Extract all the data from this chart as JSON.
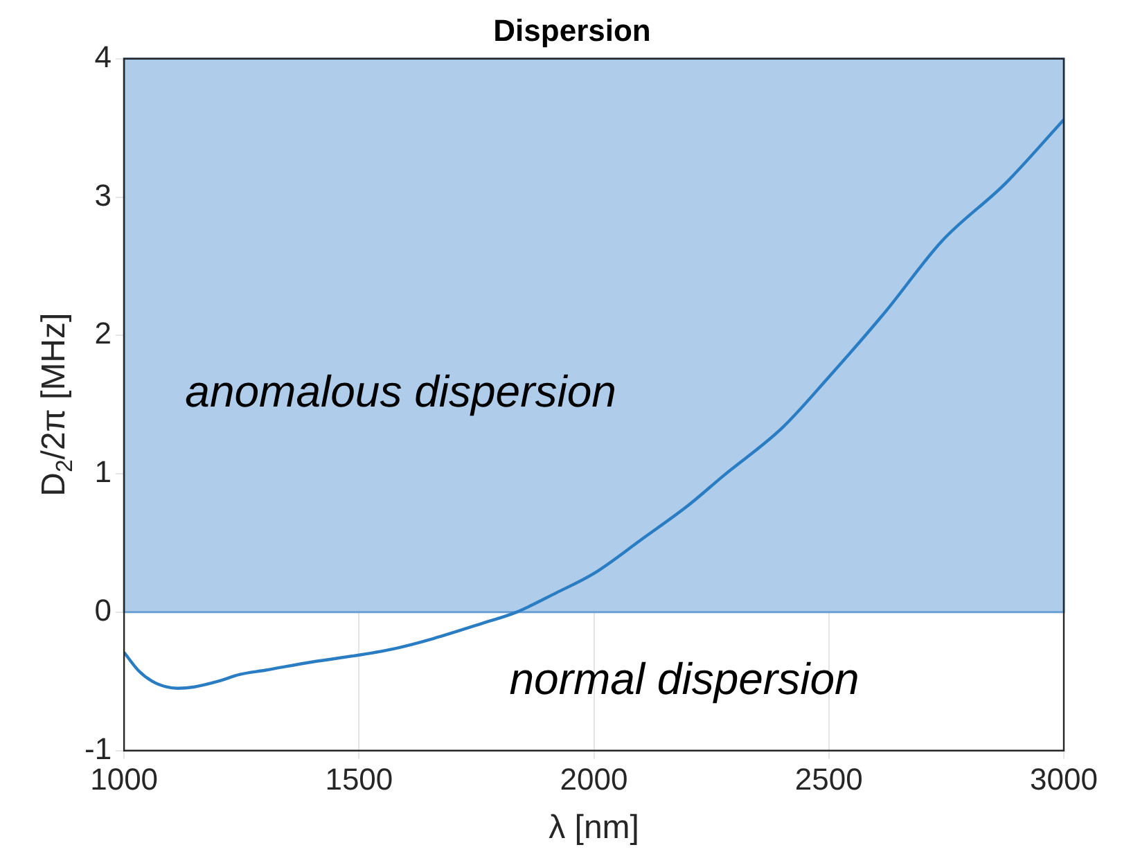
{
  "chart_data": {
    "type": "line",
    "title": "Dispersion",
    "xlabel": "λ [nm]",
    "ylabel": "D$_{2}$/2π [MHz]",
    "x": [
      1000,
      1030,
      1060,
      1090,
      1114,
      1150,
      1200,
      1247,
      1300,
      1400,
      1500,
      1580,
      1659,
      1763,
      1835,
      1920,
      2000,
      2103,
      2200,
      2277,
      2400,
      2500,
      2620,
      2740,
      2876,
      3000
    ],
    "series": [
      {
        "color": "#2a7dc2",
        "values": [
          -0.29,
          -0.42,
          -0.5,
          -0.54,
          -0.55,
          -0.54,
          -0.5,
          -0.45,
          -0.42,
          -0.36,
          -0.31,
          -0.26,
          -0.19,
          -0.08,
          0,
          0.14,
          0.28,
          0.53,
          0.77,
          0.99,
          1.33,
          1.7,
          2.17,
          2.68,
          3.1,
          3.56
        ]
      }
    ],
    "xlim": [
      1000,
      3000
    ],
    "xticks": [
      1000,
      1500,
      2000,
      2500,
      3000
    ],
    "ylim": [
      -1,
      4
    ],
    "yticks": [
      -1,
      0,
      1,
      2,
      3,
      4
    ],
    "grid": true,
    "marker": "none",
    "line_style": "solid",
    "bands": [
      {
        "axis": "y",
        "from": 0,
        "to": 4,
        "color": "#afcdea"
      }
    ],
    "annotations": [
      "anomalous dispersion",
      "normal dispersion"
    ]
  }
}
